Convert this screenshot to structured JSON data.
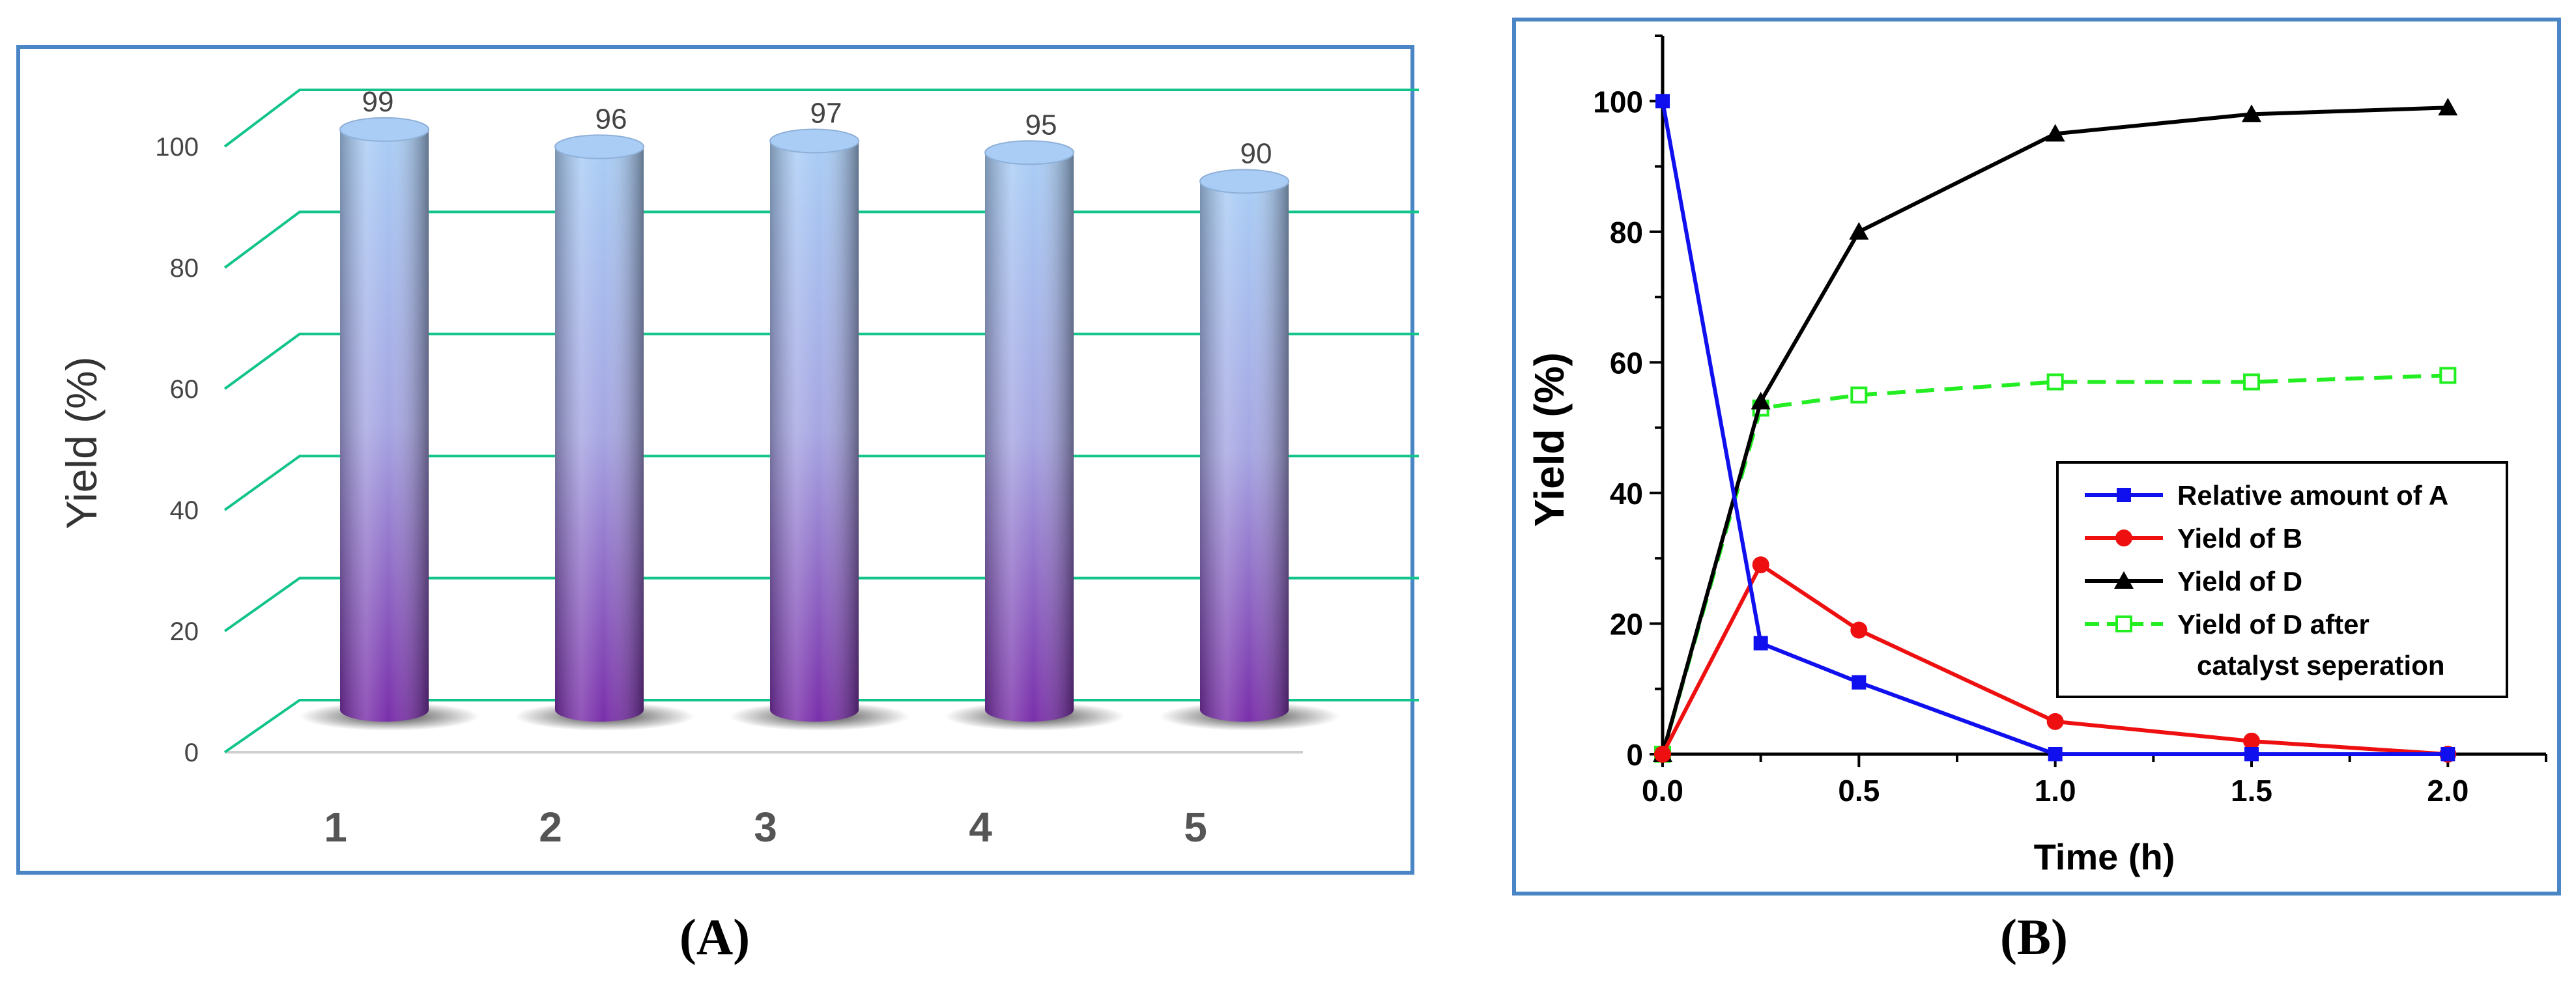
{
  "panels": [
    {
      "label": "(A)"
    },
    {
      "label": "(B)"
    }
  ],
  "colors": {
    "frame": "#4a86c6",
    "floor_line": "#12c48b",
    "cyl_top": "#a9cdf5",
    "cyl_bottom": "#7a2faa",
    "series_A": "#1010ee",
    "series_B": "#ee1010",
    "series_D": "#000000",
    "series_D_sep": "#22ee22"
  },
  "chart_data": [
    {
      "type": "bar",
      "style": "3d-cylinder",
      "title": "",
      "xlabel": "",
      "ylabel": "Yield (%)",
      "categories": [
        "1",
        "2",
        "3",
        "4",
        "5"
      ],
      "values": [
        99,
        96,
        97,
        95,
        90
      ],
      "data_labels": [
        "99",
        "96",
        "97",
        "95",
        "90"
      ],
      "ylim": [
        0,
        100
      ],
      "yticks": [
        "0",
        "20",
        "40",
        "60",
        "80",
        "100"
      ],
      "grid": true,
      "legend": "none"
    },
    {
      "type": "line",
      "title": "",
      "xlabel": "Time (h)",
      "ylabel": "Yield (%)",
      "xlim": [
        0,
        2.25
      ],
      "ylim": [
        0,
        110
      ],
      "xticks": [
        "0.0",
        "0.5",
        "1.0",
        "1.5",
        "2.0"
      ],
      "yticks": [
        "0",
        "20",
        "40",
        "60",
        "80",
        "100"
      ],
      "grid": false,
      "legend": "bottom-right",
      "series": [
        {
          "name": "Relative amount of A",
          "marker": "square-filled",
          "dash": "solid",
          "x": [
            0,
            0.25,
            0.5,
            1.0,
            1.5,
            2.0
          ],
          "y": [
            100,
            17,
            11,
            0,
            0,
            0
          ]
        },
        {
          "name": "Yield of B",
          "marker": "circle-filled",
          "dash": "solid",
          "x": [
            0,
            0.25,
            0.5,
            1.0,
            1.5,
            2.0
          ],
          "y": [
            0,
            29,
            19,
            5,
            2,
            0
          ]
        },
        {
          "name": "Yield of D",
          "marker": "triangle-filled",
          "dash": "solid",
          "x": [
            0,
            0.25,
            0.5,
            1.0,
            1.5,
            2.0
          ],
          "y": [
            0,
            54,
            80,
            95,
            98,
            99
          ]
        },
        {
          "name": "Yield of D after",
          "name_line2": "catalyst seperation",
          "marker": "square-open",
          "dash": "dashed",
          "x": [
            0,
            0.25,
            0.5,
            1.0,
            1.5,
            2.0
          ],
          "y": [
            0,
            53,
            55,
            57,
            57,
            58
          ]
        }
      ]
    }
  ]
}
